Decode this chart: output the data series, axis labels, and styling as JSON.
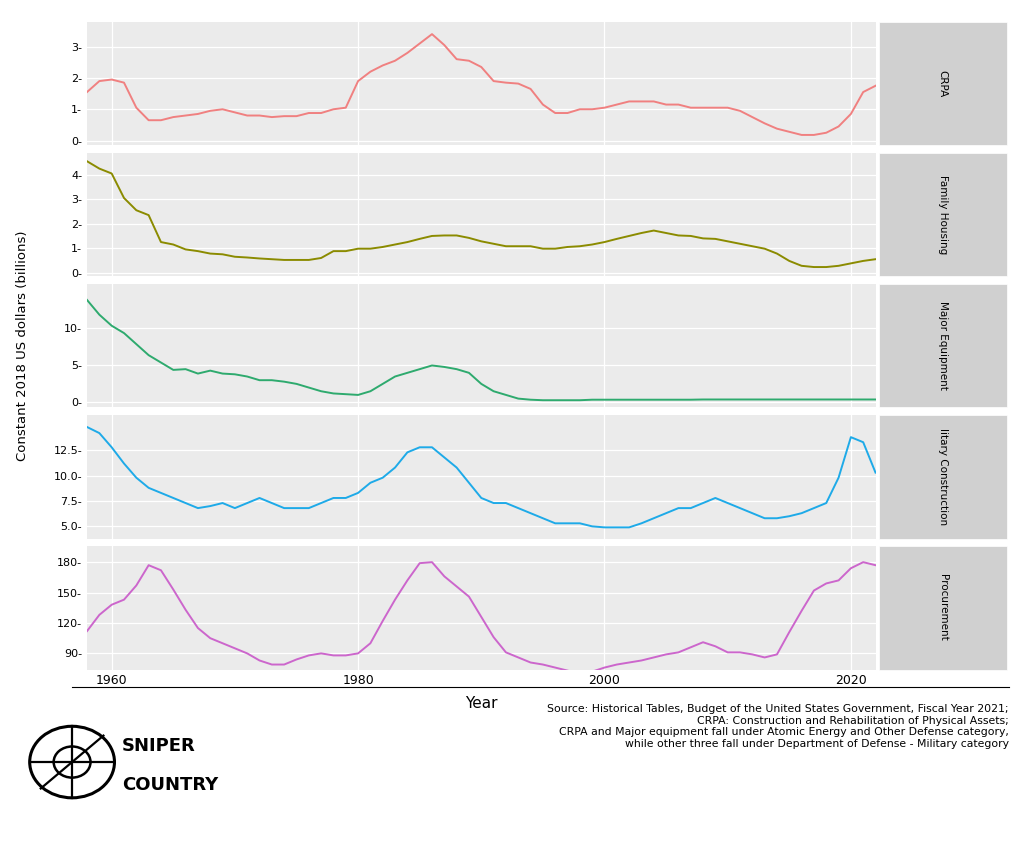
{
  "years": [
    1958,
    1959,
    1960,
    1961,
    1962,
    1963,
    1964,
    1965,
    1966,
    1967,
    1968,
    1969,
    1970,
    1971,
    1972,
    1973,
    1974,
    1975,
    1976,
    1977,
    1978,
    1979,
    1980,
    1981,
    1982,
    1983,
    1984,
    1985,
    1986,
    1987,
    1988,
    1989,
    1990,
    1991,
    1992,
    1993,
    1994,
    1995,
    1996,
    1997,
    1998,
    1999,
    2000,
    2001,
    2002,
    2003,
    2004,
    2005,
    2006,
    2007,
    2008,
    2009,
    2010,
    2011,
    2012,
    2013,
    2014,
    2015,
    2016,
    2017,
    2018,
    2019,
    2020,
    2021,
    2022
  ],
  "CRPA": [
    1.55,
    1.9,
    1.95,
    1.85,
    1.05,
    0.65,
    0.65,
    0.75,
    0.8,
    0.85,
    0.95,
    1.0,
    0.9,
    0.8,
    0.8,
    0.75,
    0.78,
    0.78,
    0.88,
    0.88,
    1.0,
    1.05,
    1.9,
    2.2,
    2.4,
    2.55,
    2.8,
    3.1,
    3.4,
    3.05,
    2.6,
    2.55,
    2.35,
    1.9,
    1.85,
    1.82,
    1.65,
    1.15,
    0.88,
    0.88,
    1.0,
    1.0,
    1.05,
    1.15,
    1.25,
    1.25,
    1.25,
    1.15,
    1.15,
    1.05,
    1.05,
    1.05,
    1.05,
    0.95,
    0.75,
    0.55,
    0.38,
    0.28,
    0.18,
    0.18,
    0.25,
    0.45,
    0.85,
    1.55,
    1.75
  ],
  "FamilyHousing": [
    4.55,
    4.25,
    4.05,
    3.05,
    2.55,
    2.35,
    1.25,
    1.15,
    0.95,
    0.88,
    0.78,
    0.75,
    0.65,
    0.62,
    0.58,
    0.55,
    0.52,
    0.52,
    0.52,
    0.6,
    0.88,
    0.88,
    0.98,
    0.98,
    1.05,
    1.15,
    1.25,
    1.38,
    1.5,
    1.52,
    1.52,
    1.42,
    1.28,
    1.18,
    1.08,
    1.08,
    1.08,
    0.98,
    0.98,
    1.05,
    1.08,
    1.15,
    1.25,
    1.38,
    1.5,
    1.62,
    1.72,
    1.62,
    1.52,
    1.5,
    1.4,
    1.38,
    1.28,
    1.18,
    1.08,
    0.98,
    0.78,
    0.48,
    0.28,
    0.23,
    0.23,
    0.28,
    0.38,
    0.48,
    0.55
  ],
  "MajorEquipment": [
    13.8,
    11.8,
    10.3,
    9.3,
    7.8,
    6.3,
    5.3,
    4.3,
    4.4,
    3.8,
    4.2,
    3.8,
    3.7,
    3.4,
    2.9,
    2.9,
    2.7,
    2.4,
    1.9,
    1.4,
    1.1,
    1.0,
    0.9,
    1.4,
    2.4,
    3.4,
    3.9,
    4.4,
    4.9,
    4.7,
    4.4,
    3.9,
    2.4,
    1.4,
    0.9,
    0.4,
    0.25,
    0.18,
    0.18,
    0.18,
    0.18,
    0.25,
    0.25,
    0.25,
    0.25,
    0.25,
    0.25,
    0.25,
    0.25,
    0.25,
    0.28,
    0.28,
    0.28,
    0.28,
    0.28,
    0.28,
    0.28,
    0.28,
    0.28,
    0.28,
    0.28,
    0.28,
    0.28,
    0.28,
    0.28
  ],
  "MilitaryConstruction": [
    14.8,
    14.2,
    12.8,
    11.2,
    9.8,
    8.8,
    8.3,
    7.8,
    7.3,
    6.8,
    7.0,
    7.3,
    6.8,
    7.3,
    7.8,
    7.3,
    6.8,
    6.8,
    6.8,
    7.3,
    7.8,
    7.8,
    8.3,
    9.3,
    9.8,
    10.8,
    12.3,
    12.8,
    12.8,
    11.8,
    10.8,
    9.3,
    7.8,
    7.3,
    7.3,
    6.8,
    6.3,
    5.8,
    5.3,
    5.3,
    5.3,
    5.0,
    4.9,
    4.9,
    4.9,
    5.3,
    5.8,
    6.3,
    6.8,
    6.8,
    7.3,
    7.8,
    7.3,
    6.8,
    6.3,
    5.8,
    5.8,
    6.0,
    6.3,
    6.8,
    7.3,
    9.8,
    13.8,
    13.3,
    10.3
  ],
  "Procurement": [
    112,
    128,
    138,
    143,
    157,
    177,
    172,
    153,
    133,
    115,
    105,
    100,
    95,
    90,
    83,
    79,
    79,
    84,
    88,
    90,
    88,
    88,
    90,
    100,
    122,
    143,
    162,
    179,
    180,
    166,
    156,
    146,
    126,
    106,
    91,
    86,
    81,
    79,
    76,
    73,
    70,
    72,
    76,
    79,
    81,
    83,
    86,
    89,
    91,
    96,
    101,
    97,
    91,
    91,
    89,
    86,
    89,
    111,
    132,
    152,
    159,
    162,
    174,
    180,
    177
  ],
  "colors": {
    "CRPA": "#F08080",
    "FamilyHousing": "#8B8B00",
    "MajorEquipment": "#2EAA6E",
    "MilitaryConstruction": "#1EAAE8",
    "Procurement": "#CC66CC"
  },
  "panel_bg": "#EBEBEB",
  "strip_bg": "#D0D0D0",
  "ylabel": "Constant 2018 US dollars (billions)",
  "xlabel": "Year",
  "strip_labels": [
    "CRPA",
    "Family Housing",
    "Major Equipment",
    "litary Construction",
    "Procurement"
  ],
  "source_text": "Source: Historical Tables, Budget of the United States Government, Fiscal Year 2021;\nCRPA: Construction and Rehabilitation of Physical Assets;\nCRPA and Major equipment fall under Atomic Energy and Other Defense category,\nwhile other three fall under Department of Defense - Military category"
}
